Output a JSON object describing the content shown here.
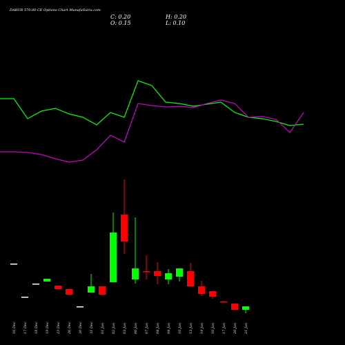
{
  "chart_data": [
    {
      "type": "candlestick",
      "title": "DABUR 570.00 CE Options Chart MunafaSutra.com",
      "annotations": [
        "C: 0.20",
        "H: 0.20",
        "O: 0.15",
        "L: 0.10"
      ],
      "categories": [
        "16 Dec",
        "17 Dec",
        "18 Dec",
        "19 Dec",
        "23 Dec",
        "26 Dec",
        "30 Dec",
        "31 Dec",
        "01 Jan",
        "02 Jan",
        "03 Jan",
        "06 Jan",
        "07 Jan",
        "08 Jan",
        "09 Jan",
        "10 Jan",
        "13 Jan",
        "14 Jan",
        "16 Jan",
        "17 Jan",
        "20 Jan",
        "21 Jan"
      ],
      "open": [
        0.82,
        0.34,
        0.53,
        0.56,
        0.5,
        0.45,
        0.2,
        0.4,
        0.49,
        0.55,
        1.53,
        0.59,
        0.71,
        0.71,
        0.59,
        0.63,
        0.71,
        0.49,
        0.42,
        0.27,
        0.24,
        0.15
      ],
      "high": [
        0.82,
        0.34,
        0.53,
        0.6,
        0.5,
        0.45,
        0.2,
        0.67,
        0.49,
        1.56,
        2.04,
        1.49,
        0.94,
        0.84,
        0.74,
        0.75,
        0.83,
        0.57,
        0.42,
        0.28,
        0.24,
        0.2
      ],
      "low": [
        0.82,
        0.34,
        0.53,
        0.56,
        0.45,
        0.37,
        0.2,
        0.4,
        0.37,
        0.55,
        0.96,
        0.53,
        0.59,
        0.52,
        0.52,
        0.56,
        0.49,
        0.35,
        0.31,
        0.26,
        0.15,
        0.1
      ],
      "close": [
        0.82,
        0.34,
        0.53,
        0.6,
        0.45,
        0.37,
        0.2,
        0.49,
        0.37,
        1.27,
        1.14,
        0.75,
        0.7,
        0.64,
        0.68,
        0.75,
        0.49,
        0.38,
        0.34,
        0.26,
        0.15,
        0.2
      ],
      "up_color": "#00ff00",
      "down_color": "#ff0000",
      "doji_color": "#ffffff",
      "ylim": [
        0,
        2.1
      ]
    },
    {
      "type": "line",
      "series": [
        {
          "color": "#00ff00",
          "values": [
            157,
            157,
            128,
            139,
            143,
            135,
            130,
            119,
            137,
            130,
            183,
            176,
            152,
            150,
            146,
            149,
            152,
            137,
            130,
            128,
            124,
            118,
            120
          ]
        },
        {
          "color": "#cc00cc",
          "values": [
            80,
            80,
            79,
            76,
            70,
            65,
            68,
            83,
            104,
            94,
            150,
            147,
            145,
            146,
            144,
            150,
            155,
            150,
            130,
            131,
            127,
            108,
            137
          ]
        }
      ],
      "ylim": [
        0,
        200
      ]
    }
  ]
}
